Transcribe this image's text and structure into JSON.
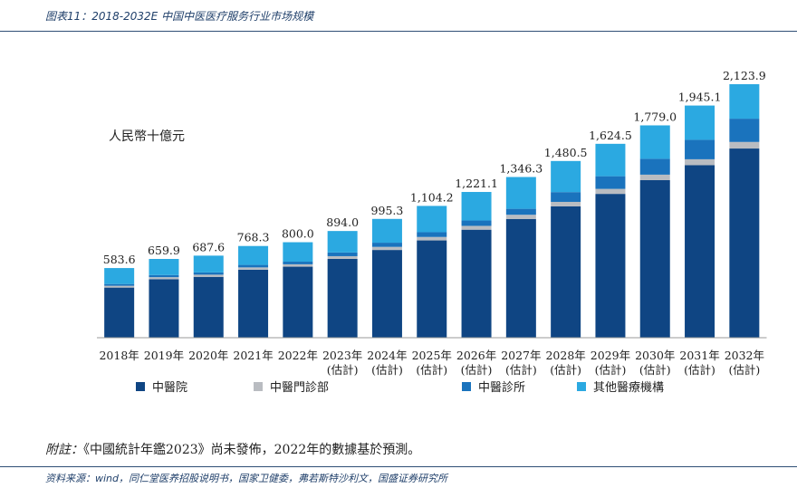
{
  "figure": {
    "title": "图表11：2018-2032E 中国中医医疗服务行业市场规模",
    "note_prefix": "附註：",
    "note_text": "《中國統計年鑑2023》尚未發佈，2022年的數據基於預測。",
    "source": "资料来源：wind，同仁堂医养招股说明书，国家卫健委，弗若斯特沙利文，国盛证券研究所"
  },
  "colors": {
    "hospital": "#0f4583",
    "clinic": "#b9bcc1",
    "outpatient": "#1a73bd",
    "other": "#2ba9e1",
    "header_rule": "#2f4f75"
  },
  "chart_data": {
    "type": "bar",
    "stacked": true,
    "unit_label": "人民幣十億元",
    "categories": [
      "2018年",
      "2019年",
      "2020年",
      "2021年",
      "2022年",
      "2023年\n(估計)",
      "2024年\n(估計)",
      "2025年\n(估計)",
      "2026年\n(估計)",
      "2027年\n(估計)",
      "2028年\n(估計)",
      "2029年\n(估計)",
      "2030年\n(估計)",
      "2031年\n(估計)",
      "2032年\n(估計)"
    ],
    "totals_labels": [
      "583.6",
      "659.9",
      "687.6",
      "768.3",
      "800.0",
      "894.0",
      "995.3",
      "1,104.2",
      "1,221.1",
      "1,346.3",
      "1,480.5",
      "1,624.5",
      "1,779.0",
      "1,945.1",
      "2,123.9"
    ],
    "totals": [
      583.6,
      659.9,
      687.6,
      768.3,
      800.0,
      894.0,
      995.3,
      1104.2,
      1221.1,
      1346.3,
      1480.5,
      1624.5,
      1779.0,
      1945.1,
      2123.9
    ],
    "series": [
      {
        "name": "中醫院",
        "color_key": "hospital",
        "values": [
          420,
          490,
          510,
          570,
          595,
          660,
          735,
          815,
          905,
          995,
          1100,
          1205,
          1320,
          1445,
          1585
        ]
      },
      {
        "name": "中醫門診部",
        "color_key": "clinic",
        "values": [
          15,
          17,
          18,
          19,
          20,
          23,
          26,
          29,
          32,
          35,
          38,
          42,
          46,
          50,
          55
        ]
      },
      {
        "name": "中醫診所",
        "color_key": "outpatient",
        "values": [
          15,
          18,
          19,
          21,
          22,
          31,
          35,
          40,
          45,
          50,
          82,
          106,
          133,
          163,
          195
        ]
      },
      {
        "name": "其他醫療機構",
        "color_key": "other",
        "values": [
          133.6,
          134.9,
          140.6,
          158.3,
          163.0,
          180.0,
          199.3,
          220.2,
          239.1,
          266.3,
          260.5,
          271.5,
          280.0,
          287.1,
          288.9
        ]
      }
    ],
    "ylim": [
      0,
      2250
    ],
    "grid": false,
    "legend_position": "bottom"
  }
}
